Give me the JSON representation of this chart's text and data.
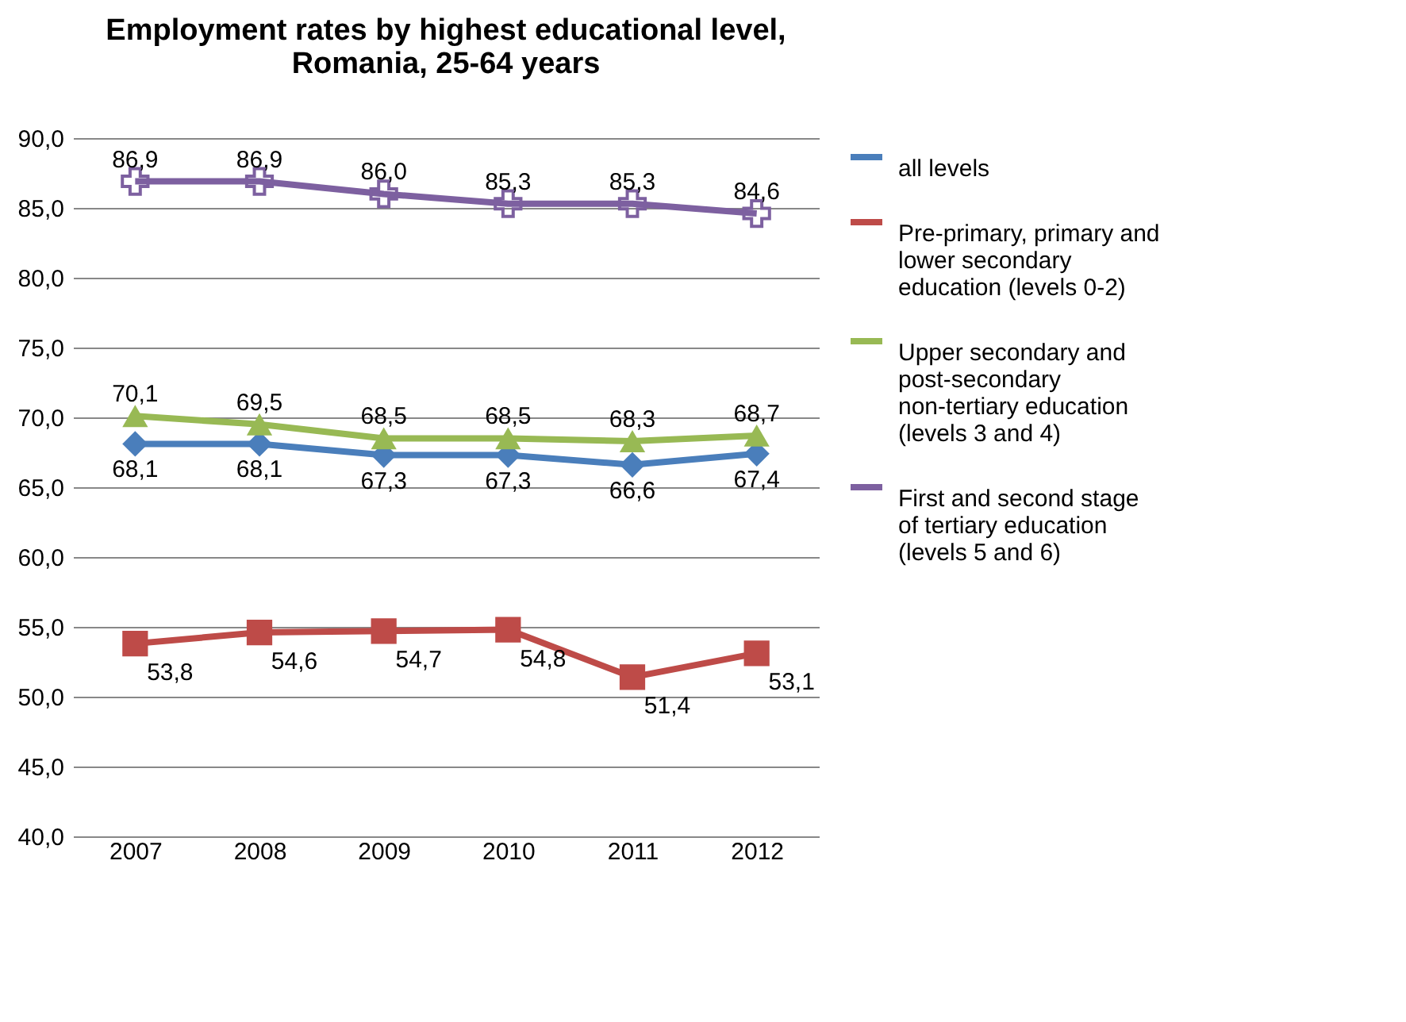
{
  "chart_data": {
    "type": "line",
    "title": "Employment rates by highest educational level,\nRomania, 25-64 years",
    "categories": [
      "2007",
      "2008",
      "2009",
      "2010",
      "2011",
      "2012"
    ],
    "series": [
      {
        "name": "all levels",
        "color": "#4a7ebb",
        "marker": "diamond",
        "values": [
          68.1,
          68.1,
          67.3,
          67.3,
          66.6,
          67.4
        ],
        "value_labels": [
          "68,1",
          "68,1",
          "67,3",
          "67,3",
          "66,6",
          "67,4"
        ]
      },
      {
        "name": "Pre-primary, primary and lower secondary education (levels 0-2)",
        "color": "#be4b48",
        "marker": "square",
        "values": [
          53.8,
          54.6,
          54.7,
          54.8,
          51.4,
          53.1
        ],
        "value_labels": [
          "53,8",
          "54,6",
          "54,7",
          "54,8",
          "51,4",
          "53,1"
        ]
      },
      {
        "name": "Upper secondary and post-secondary non-tertiary education (levels 3 and 4)",
        "color": "#98b954",
        "marker": "triangle",
        "values": [
          70.1,
          69.5,
          68.5,
          68.5,
          68.3,
          68.7
        ],
        "value_labels": [
          "70,1",
          "69,5",
          "68,5",
          "68,5",
          "68,3",
          "68,7"
        ]
      },
      {
        "name": "First and second stage of tertiary education (levels 5 and 6)",
        "color": "#7d60a0",
        "marker": "cross",
        "values": [
          86.9,
          86.9,
          86.0,
          85.3,
          85.3,
          84.6
        ],
        "value_labels": [
          "86,9",
          "86,9",
          "86,0",
          "85,3",
          "85,3",
          "84,6"
        ]
      }
    ],
    "ylim": [
      40,
      90
    ],
    "yticks": [
      {
        "value": 40,
        "label": "40,0"
      },
      {
        "value": 45,
        "label": "45,0"
      },
      {
        "value": 50,
        "label": "50,0"
      },
      {
        "value": 55,
        "label": "55,0"
      },
      {
        "value": 60,
        "label": "60,0"
      },
      {
        "value": 65,
        "label": "65,0"
      },
      {
        "value": 70,
        "label": "70,0"
      },
      {
        "value": 75,
        "label": "75,0"
      },
      {
        "value": 80,
        "label": "80,0"
      },
      {
        "value": 85,
        "label": "85,0"
      },
      {
        "value": 90,
        "label": "90,0"
      }
    ],
    "grid": "y",
    "legend": "right"
  }
}
